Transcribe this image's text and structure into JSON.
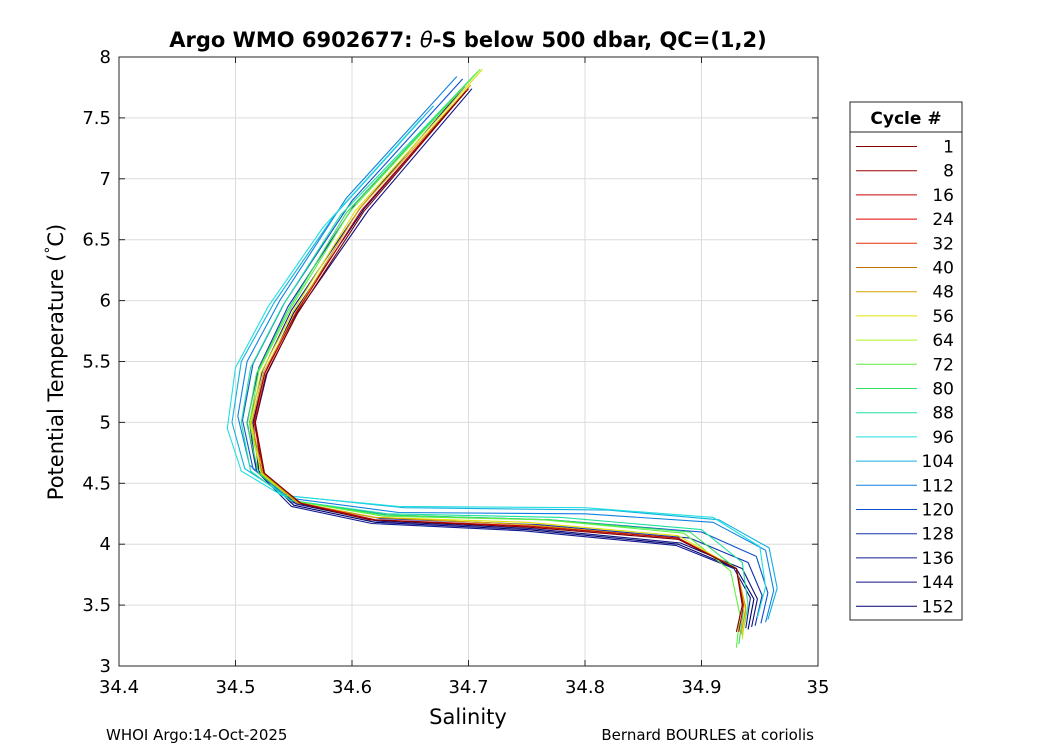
{
  "chart_data": {
    "type": "line",
    "title": "Argo WMO 6902677: θ-S below 500 dbar,  QC=(1,2)",
    "title_parts": {
      "prefix": "Argo WMO 6902677: ",
      "theta": "θ",
      "suffix": "-S below 500 dbar,  QC=(1,2)"
    },
    "xlabel": "Salinity",
    "ylabel_parts": {
      "prefix": "Potential Temperature (",
      "degree": "°",
      "suffix": "C)"
    },
    "xlim": [
      34.4,
      35
    ],
    "ylim": [
      3,
      8
    ],
    "xticks": [
      "34.4",
      "34.5",
      "34.6",
      "34.7",
      "34.8",
      "34.9",
      "35"
    ],
    "yticks": [
      "3",
      "3.5",
      "4",
      "4.5",
      "5",
      "5.5",
      "6",
      "6.5",
      "7",
      "7.5",
      "8"
    ],
    "grid": true,
    "legend": {
      "title": "Cycle #",
      "placement": "right",
      "entries": [
        {
          "label": "1",
          "color": "#800000"
        },
        {
          "label": "8",
          "color": "#a00000"
        },
        {
          "label": "16",
          "color": "#c80000"
        },
        {
          "label": "24",
          "color": "#e00000"
        },
        {
          "label": "32",
          "color": "#e03000"
        },
        {
          "label": "40",
          "color": "#c07000"
        },
        {
          "label": "48",
          "color": "#d8a000"
        },
        {
          "label": "56",
          "color": "#e0e000"
        },
        {
          "label": "64",
          "color": "#b0f020"
        },
        {
          "label": "72",
          "color": "#60f040"
        },
        {
          "label": "80",
          "color": "#30e060"
        },
        {
          "label": "88",
          "color": "#20e0a0"
        },
        {
          "label": "96",
          "color": "#20e0e0"
        },
        {
          "label": "104",
          "color": "#10b0e0"
        },
        {
          "label": "112",
          "color": "#1080e0"
        },
        {
          "label": "120",
          "color": "#1050d0"
        },
        {
          "label": "128",
          "color": "#1030b0"
        },
        {
          "label": "136",
          "color": "#101890"
        },
        {
          "label": "144",
          "color": "#101080"
        },
        {
          "label": "152",
          "color": "#000070"
        }
      ]
    },
    "series": [
      {
        "color": "#000070",
        "x": [
          34.7,
          34.61,
          34.55,
          34.525,
          34.515,
          34.52,
          34.55,
          34.62,
          34.75,
          34.88,
          34.93,
          34.945,
          34.94
        ],
        "y": [
          7.75,
          6.75,
          5.9,
          5.4,
          5.0,
          4.6,
          4.32,
          4.18,
          4.12,
          4.0,
          3.8,
          3.55,
          3.3
        ]
      },
      {
        "color": "#101080",
        "x": [
          34.703,
          34.614,
          34.553,
          34.527,
          34.517,
          34.522,
          34.552,
          34.622,
          34.752,
          34.882,
          34.935,
          34.948,
          34.943
        ],
        "y": [
          7.74,
          6.74,
          5.9,
          5.4,
          5.0,
          4.6,
          4.33,
          4.19,
          4.13,
          4.01,
          3.8,
          3.55,
          3.32
        ]
      },
      {
        "color": "#101890",
        "x": [
          34.697,
          34.607,
          34.548,
          34.523,
          34.512,
          34.518,
          34.548,
          34.617,
          34.747,
          34.878,
          34.928,
          34.942,
          34.938
        ],
        "y": [
          7.76,
          6.76,
          5.92,
          5.42,
          5.0,
          4.6,
          4.31,
          4.17,
          4.11,
          3.99,
          3.8,
          3.56,
          3.31
        ]
      },
      {
        "color": "#1030b0",
        "x": [
          34.7,
          34.603,
          34.545,
          34.52,
          34.51,
          34.518,
          34.55,
          34.625,
          34.76,
          34.89,
          34.94,
          34.952,
          34.946
        ],
        "y": [
          7.8,
          6.8,
          5.95,
          5.45,
          5.0,
          4.6,
          4.34,
          4.21,
          4.16,
          4.05,
          3.85,
          3.58,
          3.33
        ]
      },
      {
        "color": "#1050d0",
        "x": [
          34.695,
          34.6,
          34.542,
          34.515,
          34.506,
          34.515,
          34.548,
          34.63,
          34.77,
          34.9,
          34.947,
          34.957,
          34.951
        ],
        "y": [
          7.82,
          6.82,
          5.98,
          5.48,
          5.02,
          4.62,
          4.36,
          4.24,
          4.2,
          4.1,
          3.9,
          3.6,
          3.35
        ]
      },
      {
        "color": "#1080e0",
        "x": [
          34.69,
          34.595,
          34.538,
          34.51,
          34.502,
          34.512,
          34.545,
          34.64,
          34.8,
          34.91,
          34.955,
          34.962,
          34.955
        ],
        "y": [
          7.84,
          6.84,
          6.0,
          5.5,
          5.05,
          4.65,
          4.38,
          4.26,
          4.25,
          4.18,
          3.95,
          3.62,
          3.36
        ]
      },
      {
        "color": "#10b0e0",
        "x": [
          34.67,
          34.585,
          34.533,
          34.505,
          34.497,
          34.508,
          34.543,
          34.645,
          34.82,
          34.915,
          34.958,
          34.965,
          34.957
        ],
        "y": [
          7.6,
          6.7,
          5.98,
          5.5,
          5.0,
          4.62,
          4.4,
          4.3,
          4.28,
          4.2,
          3.97,
          3.64,
          3.38
        ]
      },
      {
        "color": "#20e0e0",
        "x": [
          34.66,
          34.575,
          34.528,
          34.5,
          34.493,
          34.505,
          34.54,
          34.64,
          34.8,
          34.91,
          34.95,
          34.955,
          34.948
        ],
        "y": [
          7.5,
          6.6,
          5.95,
          5.45,
          4.95,
          4.6,
          4.4,
          4.31,
          4.3,
          4.22,
          3.98,
          3.65,
          3.4
        ]
      },
      {
        "color": "#20e0a0",
        "x": [
          34.705,
          34.59,
          34.54,
          34.513,
          34.505,
          34.513,
          34.547,
          34.63,
          34.78,
          34.9,
          34.935,
          34.94,
          34.935
        ],
        "y": [
          7.85,
          6.7,
          5.95,
          5.45,
          5.0,
          4.6,
          4.36,
          4.25,
          4.22,
          4.12,
          3.85,
          3.5,
          3.25
        ]
      },
      {
        "color": "#30e060",
        "x": [
          34.708,
          34.595,
          34.545,
          34.518,
          34.51,
          34.52,
          34.552,
          34.628,
          34.77,
          34.89,
          34.93,
          34.936,
          34.932
        ],
        "y": [
          7.88,
          6.72,
          5.92,
          5.4,
          4.98,
          4.58,
          4.35,
          4.24,
          4.2,
          4.1,
          3.8,
          3.45,
          3.18
        ]
      },
      {
        "color": "#60f040",
        "x": [
          34.71,
          34.598,
          34.547,
          34.52,
          34.512,
          34.522,
          34.553,
          34.627,
          34.765,
          34.885,
          34.925,
          34.933,
          34.93
        ],
        "y": [
          7.9,
          6.73,
          5.93,
          5.42,
          4.99,
          4.59,
          4.35,
          4.23,
          4.2,
          4.09,
          3.78,
          3.42,
          3.15
        ]
      },
      {
        "color": "#e0e000",
        "x": [
          34.712,
          34.603,
          34.55,
          34.522,
          34.513,
          34.522,
          34.553,
          34.62,
          34.75,
          34.88,
          34.93,
          34.938,
          34.935
        ],
        "y": [
          7.9,
          6.74,
          5.92,
          5.41,
          5.0,
          4.58,
          4.34,
          4.22,
          4.18,
          4.07,
          3.8,
          3.45,
          3.22
        ]
      },
      {
        "color": "#d8a000",
        "x": [
          34.702,
          34.606,
          34.552,
          34.524,
          34.514,
          34.523,
          34.553,
          34.62,
          34.75,
          34.88,
          34.93,
          34.938,
          34.934
        ],
        "y": [
          7.77,
          6.75,
          5.91,
          5.41,
          5.0,
          4.59,
          4.34,
          4.22,
          4.16,
          4.05,
          3.8,
          3.48,
          3.26
        ]
      },
      {
        "color": "#c80000",
        "x": [
          34.7,
          34.608,
          34.552,
          34.525,
          34.516,
          34.524,
          34.555,
          34.62,
          34.75,
          34.88,
          34.93,
          34.936,
          34.932
        ],
        "y": [
          7.74,
          6.74,
          5.9,
          5.4,
          5.0,
          4.59,
          4.34,
          4.2,
          4.15,
          4.05,
          3.8,
          3.5,
          3.28
        ]
      },
      {
        "color": "#800000",
        "x": [
          34.698,
          34.61,
          34.553,
          34.526,
          34.517,
          34.525,
          34.557,
          34.615,
          34.75,
          34.88,
          34.93,
          34.935,
          34.93
        ],
        "y": [
          7.72,
          6.73,
          5.89,
          5.39,
          5.0,
          4.58,
          4.33,
          4.2,
          4.14,
          4.04,
          3.8,
          3.5,
          3.28
        ]
      }
    ]
  },
  "footer": {
    "left": "WHOI Argo:14-Oct-2025",
    "right": "Bernard BOURLES at coriolis"
  }
}
